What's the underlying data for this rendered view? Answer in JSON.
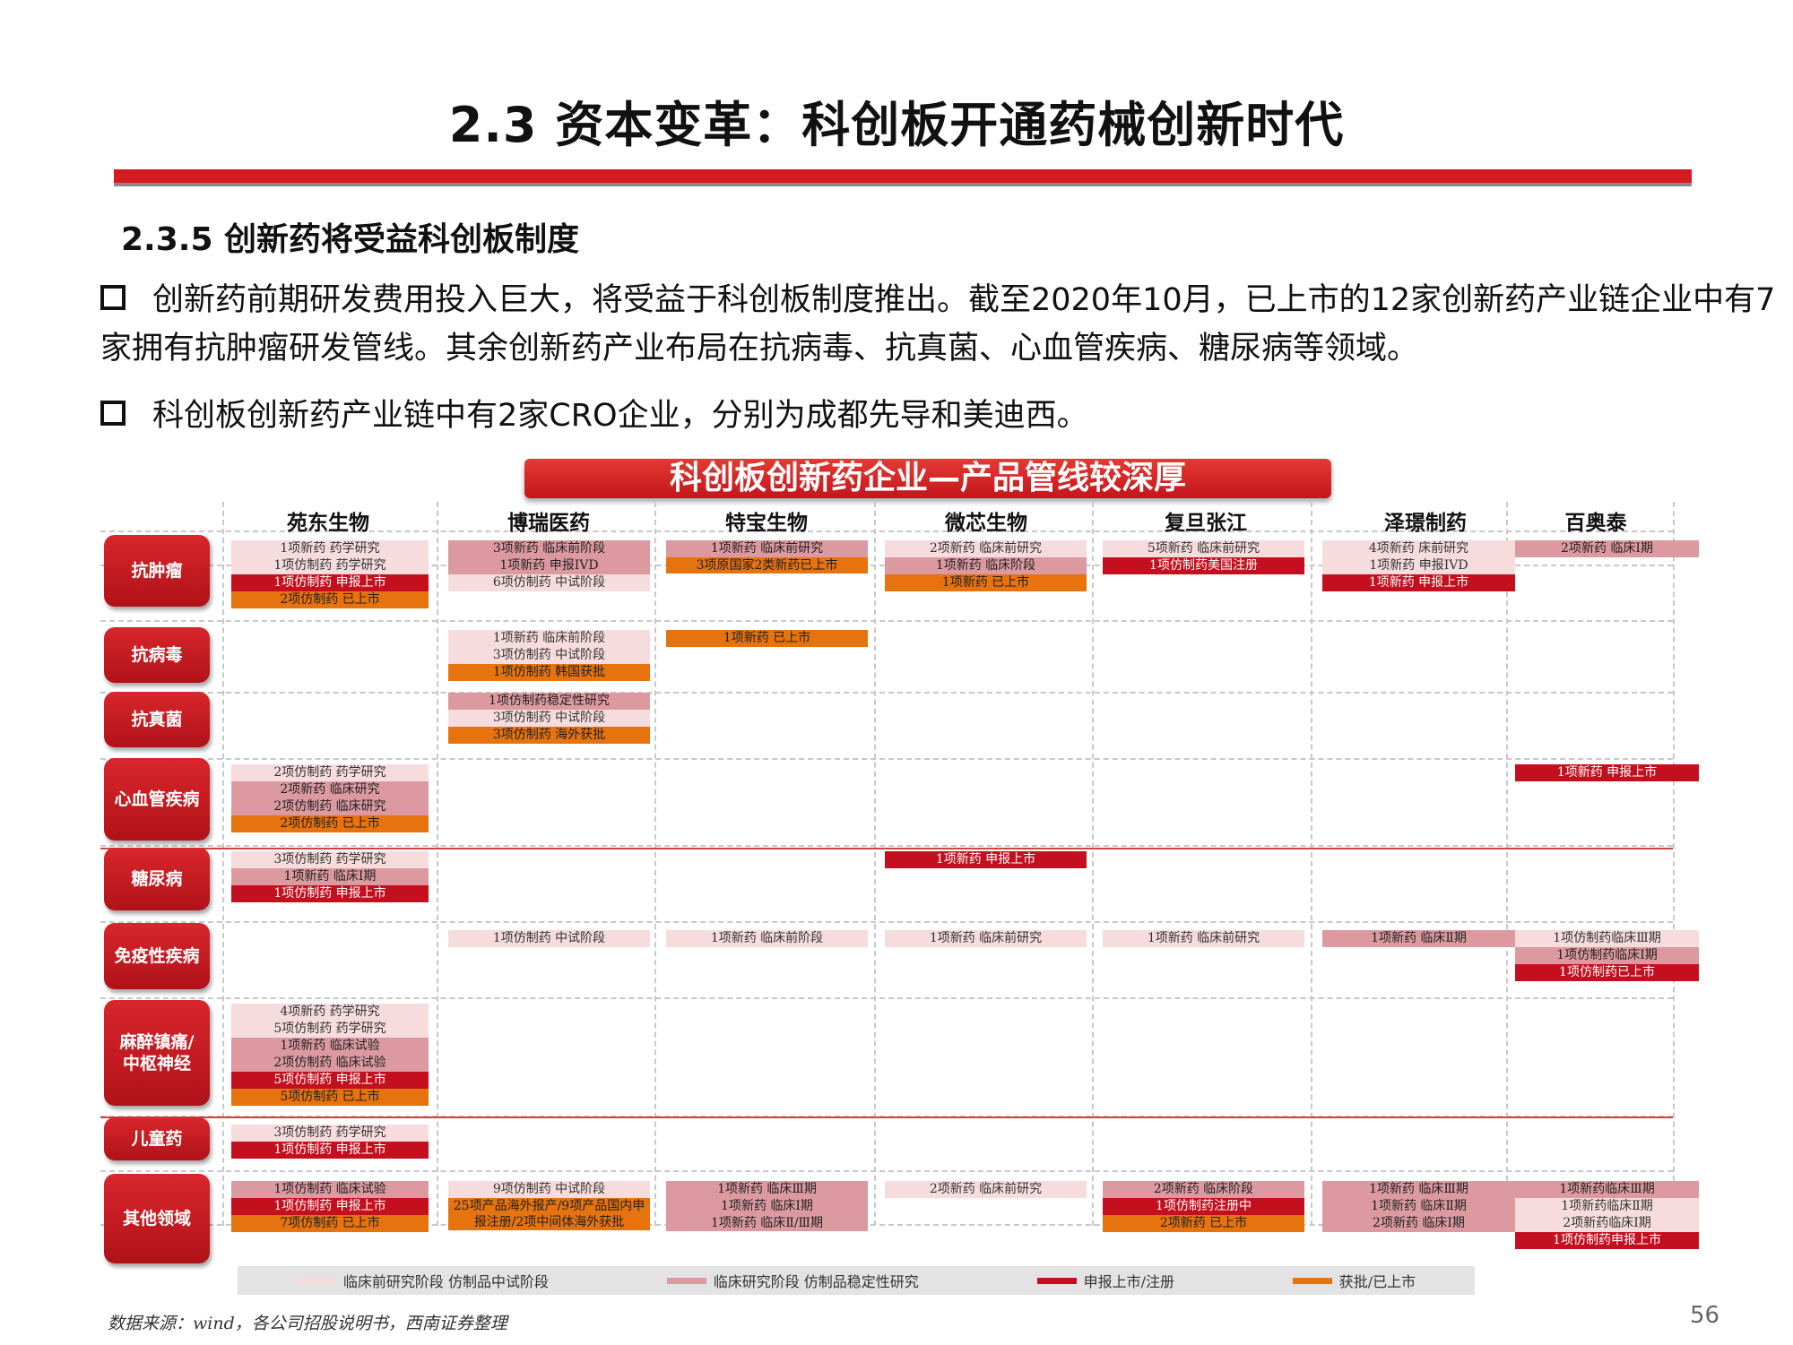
{
  "page_title": "2.3 资本变革：科创板开通药械创新时代",
  "section_title": "2.3.5 创新药将受益科创板制度",
  "bullets": [
    "创新药前期研发费用投入巨大，将受益于科创板制度推出。截至2020年10月，已上市的12家创新药产业链企业中有7家拥有抗肿瘤研发管线。其余创新药产业布局在抗病毒、抗真菌、心血管疾病、糖尿病等领域。",
    "科创板创新药产业链中有2家CRO企业，分别为成都先导和美迪西。"
  ],
  "figure": {
    "banner": "科创板创新药企业—产品管线较深厚",
    "companies": [
      "苑东生物",
      "博瑞医药",
      "特宝生物",
      "微芯生物",
      "复旦张江",
      "泽璟制药",
      "百奥泰"
    ],
    "rows": [
      {
        "label": "抗肿瘤",
        "cells": [
          [
            {
              "t": "1项新药 药学研究",
              "c": 1
            },
            {
              "t": "1项仿制药 药学研究",
              "c": 1
            },
            {
              "t": "1项仿制药 申报上市",
              "c": 3
            },
            {
              "t": "2项仿制药 已上市",
              "c": 4
            }
          ],
          [
            {
              "t": "3项新药 临床前阶段",
              "c": 2
            },
            {
              "t": "1项新药 申报IVD",
              "c": 2
            },
            {
              "t": "6项仿制药 中试阶段",
              "c": 1
            }
          ],
          [
            {
              "t": "1项新药 临床前研究",
              "c": 2
            },
            {
              "t": "3项原国家2类新药已上市",
              "c": 4,
              "w": 1
            }
          ],
          [
            {
              "t": "2项新药 临床前研究",
              "c": 1
            },
            {
              "t": "1项新药 临床阶段",
              "c": 2
            },
            {
              "t": "1项新药 已上市",
              "c": 4
            }
          ],
          [
            {
              "t": "5项新药 临床前研究",
              "c": 1
            },
            {
              "t": "1项仿制药美国注册",
              "c": 3
            }
          ],
          [
            {
              "t": "4项新药 床前研究",
              "c": 1
            },
            {
              "t": "1项新药 申报IVD",
              "c": 1
            },
            {
              "t": "1项新药 申报上市",
              "c": 3
            }
          ],
          [
            {
              "t": "2项新药 临床Ⅰ期",
              "c": 2
            }
          ]
        ]
      },
      {
        "label": "抗病毒",
        "cells": [
          [],
          [
            {
              "t": "1项新药 临床前阶段",
              "c": 1
            },
            {
              "t": "3项仿制药 中试阶段",
              "c": 1
            },
            {
              "t": "1项仿制药 韩国获批",
              "c": 4
            }
          ],
          [
            {
              "t": "1项新药 已上市",
              "c": 4
            }
          ],
          [],
          [],
          [],
          []
        ]
      },
      {
        "label": "抗真菌",
        "cells": [
          [],
          [
            {
              "t": "1项仿制药稳定性研究",
              "c": 2
            },
            {
              "t": "3项仿制药 中试阶段",
              "c": 1
            },
            {
              "t": "3项仿制药 海外获批",
              "c": 4
            }
          ],
          [],
          [],
          [],
          [],
          []
        ]
      },
      {
        "label": "心血管疾病",
        "cells": [
          [
            {
              "t": "2项仿制药 药学研究",
              "c": 1
            },
            {
              "t": "2项新药 临床研究",
              "c": 2
            },
            {
              "t": "2项仿制药 临床研究",
              "c": 2
            },
            {
              "t": "2项仿制药 已上市",
              "c": 4
            }
          ],
          [],
          [],
          [],
          [],
          [],
          [
            {
              "t": "1项新药 申报上市",
              "c": 3
            }
          ]
        ]
      },
      {
        "label": "糖尿病",
        "cells": [
          [
            {
              "t": "3项仿制药 药学研究",
              "c": 1
            },
            {
              "t": "1项新药 临床Ⅰ期",
              "c": 2
            },
            {
              "t": "1项仿制药 申报上市",
              "c": 3
            }
          ],
          [],
          [],
          [
            {
              "t": "1项新药 申报上市",
              "c": 3
            }
          ],
          [],
          [],
          []
        ]
      },
      {
        "label": "免疫性疾病",
        "cells": [
          [],
          [
            {
              "t": "1项仿制药 中试阶段",
              "c": 1
            }
          ],
          [
            {
              "t": "1项新药 临床前阶段",
              "c": 1
            }
          ],
          [
            {
              "t": "1项新药 临床前研究",
              "c": 1
            }
          ],
          [
            {
              "t": "1项新药 临床前研究",
              "c": 1
            }
          ],
          [
            {
              "t": "1项新药 临床Ⅱ期",
              "c": 2
            }
          ],
          [
            {
              "t": "1项仿制药临床Ⅲ期",
              "c": 1
            },
            {
              "t": "1项仿制药临床Ⅰ期",
              "c": 2
            },
            {
              "t": "1项仿制药已上市",
              "c": 3
            }
          ]
        ]
      },
      {
        "label": "麻醉镇痛/中枢神经",
        "cells": [
          [
            {
              "t": "4项新药 药学研究",
              "c": 1
            },
            {
              "t": "5项仿制药 药学研究",
              "c": 1
            },
            {
              "t": "1项新药 临床试验",
              "c": 2
            },
            {
              "t": "2项仿制药 临床试验",
              "c": 2
            },
            {
              "t": "5项仿制药 申报上市",
              "c": 3
            },
            {
              "t": "5项仿制药 已上市",
              "c": 4
            }
          ],
          [],
          [],
          [],
          [],
          [],
          []
        ]
      },
      {
        "label": "儿童药",
        "cells": [
          [
            {
              "t": "3项仿制药 药学研究",
              "c": 1
            },
            {
              "t": "1项仿制药 申报上市",
              "c": 3
            }
          ],
          [],
          [],
          [],
          [],
          [],
          []
        ]
      },
      {
        "label": "其他领域",
        "cells": [
          [
            {
              "t": "1项仿制药 临床试验",
              "c": 2
            },
            {
              "t": "1项仿制药 申报上市",
              "c": 3
            },
            {
              "t": "7项仿制药 已上市",
              "c": 4
            }
          ],
          [
            {
              "t": "9项仿制药 中试阶段",
              "c": 1
            },
            {
              "t": "25项产品海外报产/9项产品国内申报注册/2项中间体海外获批",
              "c": 4,
              "w": 1
            }
          ],
          [
            {
              "t": "1项新药 临床Ⅲ期",
              "c": 2
            },
            {
              "t": "1项新药 临床Ⅰ期",
              "c": 2
            },
            {
              "t": "1项新药 临床Ⅱ/Ⅲ期",
              "c": 2,
              "w": 1
            }
          ],
          [
            {
              "t": "2项新药 临床前研究",
              "c": 1
            }
          ],
          [
            {
              "t": "2项新药 临床阶段",
              "c": 2
            },
            {
              "t": "1项仿制药注册中",
              "c": 3
            },
            {
              "t": "2项新药 已上市",
              "c": 4
            }
          ],
          [
            {
              "t": "1项新药 临床Ⅲ期",
              "c": 2
            },
            {
              "t": "1项新药 临床Ⅱ期",
              "c": 2
            },
            {
              "t": "2项新药 临床Ⅰ期",
              "c": 2
            }
          ],
          [
            {
              "t": "1项新药临床Ⅲ期",
              "c": 2
            },
            {
              "t": "1项新药临床Ⅱ期",
              "c": 1
            },
            {
              "t": "2项新药临床Ⅰ期",
              "c": 1
            },
            {
              "t": "1项仿制药申报上市",
              "c": 3
            }
          ]
        ]
      }
    ],
    "legend": [
      {
        "label": "临床前研究阶段 仿制品中试阶段",
        "color": "#f6dcdc"
      },
      {
        "label": "临床研究阶段 仿制品稳定性研究",
        "color": "#dc9aa0"
      },
      {
        "label": "申报上市/注册",
        "color": "#c4101e"
      },
      {
        "label": "获批/已上市",
        "color": "#e6730e"
      }
    ]
  },
  "source": "数据来源：wind，各公司招股说明书，西南证券整理",
  "page_number": "56"
}
